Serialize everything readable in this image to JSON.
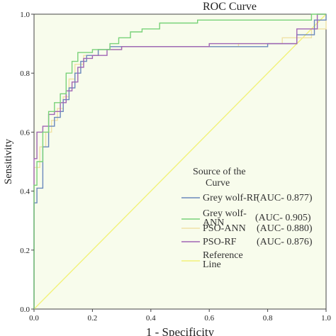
{
  "chart_data": {
    "type": "line",
    "title": "ROC Curve",
    "xlabel": "1 - Specificity",
    "ylabel": "Sensitivity",
    "xlim": [
      0.0,
      1.0
    ],
    "ylim": [
      0.0,
      1.0
    ],
    "x_ticks": [
      "0.0",
      "0.2",
      "0.4",
      "0.6",
      "0.8",
      "1.0"
    ],
    "y_ticks": [
      "0.0",
      "0.2",
      "0.4",
      "0.6",
      "0.8",
      "1.0"
    ],
    "grid": false,
    "background": "#f8fcec",
    "legend": {
      "title": [
        "Source of the",
        "Curve"
      ],
      "placement": "bottom-right",
      "entries": [
        {
          "lines": [
            "Grey wolf-RF"
          ],
          "auc": "(AUC- 0.877)",
          "color": "#6a88bc"
        },
        {
          "lines": [
            "Grey wolf-",
            "ANN"
          ],
          "auc": "(AUC- 0.905)",
          "color": "#79d279"
        },
        {
          "lines": [
            "PSO-ANN"
          ],
          "auc": "(AUC- 0.880)",
          "color": "#f0e2a6"
        },
        {
          "lines": [
            "PSO-RF"
          ],
          "auc": "(AUC- 0.876)",
          "color": "#a064b4"
        },
        {
          "lines": [
            "Reference",
            "Line"
          ],
          "auc": "",
          "color": "#f2f27a"
        }
      ]
    },
    "series": [
      {
        "name": "Grey wolf-RF",
        "color": "#6a88bc",
        "points": [
          [
            0,
            0
          ],
          [
            0,
            0.14
          ],
          [
            0,
            0.36
          ],
          [
            0.01,
            0.36
          ],
          [
            0.01,
            0.41
          ],
          [
            0.03,
            0.41
          ],
          [
            0.03,
            0.55
          ],
          [
            0.05,
            0.55
          ],
          [
            0.05,
            0.62
          ],
          [
            0.07,
            0.62
          ],
          [
            0.07,
            0.65
          ],
          [
            0.09,
            0.65
          ],
          [
            0.09,
            0.67
          ],
          [
            0.1,
            0.67
          ],
          [
            0.1,
            0.71
          ],
          [
            0.12,
            0.71
          ],
          [
            0.12,
            0.75
          ],
          [
            0.14,
            0.75
          ],
          [
            0.14,
            0.8
          ],
          [
            0.16,
            0.8
          ],
          [
            0.16,
            0.84
          ],
          [
            0.18,
            0.84
          ],
          [
            0.18,
            0.86
          ],
          [
            0.22,
            0.86
          ],
          [
            0.22,
            0.88
          ],
          [
            0.26,
            0.88
          ],
          [
            0.26,
            0.89
          ],
          [
            0.8,
            0.89
          ],
          [
            0.8,
            0.9
          ],
          [
            0.9,
            0.9
          ],
          [
            0.9,
            0.93
          ],
          [
            0.96,
            0.93
          ],
          [
            0.96,
            0.98
          ],
          [
            1,
            0.98
          ],
          [
            1,
            1
          ]
        ]
      },
      {
        "name": "Grey wolf-ANN",
        "color": "#79d279",
        "points": [
          [
            0,
            0
          ],
          [
            0,
            0.42
          ],
          [
            0.01,
            0.42
          ],
          [
            0.01,
            0.5
          ],
          [
            0.03,
            0.5
          ],
          [
            0.03,
            0.6
          ],
          [
            0.05,
            0.6
          ],
          [
            0.05,
            0.67
          ],
          [
            0.07,
            0.67
          ],
          [
            0.07,
            0.7
          ],
          [
            0.09,
            0.7
          ],
          [
            0.09,
            0.73
          ],
          [
            0.11,
            0.73
          ],
          [
            0.11,
            0.8
          ],
          [
            0.13,
            0.8
          ],
          [
            0.13,
            0.84
          ],
          [
            0.15,
            0.84
          ],
          [
            0.15,
            0.87
          ],
          [
            0.2,
            0.87
          ],
          [
            0.2,
            0.88
          ],
          [
            0.26,
            0.88
          ],
          [
            0.26,
            0.9
          ],
          [
            0.29,
            0.9
          ],
          [
            0.29,
            0.92
          ],
          [
            0.33,
            0.92
          ],
          [
            0.33,
            0.94
          ],
          [
            0.37,
            0.94
          ],
          [
            0.37,
            0.95
          ],
          [
            0.43,
            0.95
          ],
          [
            0.43,
            0.97
          ],
          [
            0.56,
            0.97
          ],
          [
            0.56,
            0.98
          ],
          [
            0.95,
            0.98
          ],
          [
            0.95,
            1
          ],
          [
            1,
            1
          ]
        ]
      },
      {
        "name": "PSO-ANN",
        "color": "#f0e2a6",
        "points": [
          [
            0,
            0
          ],
          [
            0,
            0.48
          ],
          [
            0.02,
            0.48
          ],
          [
            0.02,
            0.55
          ],
          [
            0.04,
            0.55
          ],
          [
            0.04,
            0.6
          ],
          [
            0.06,
            0.6
          ],
          [
            0.06,
            0.64
          ],
          [
            0.08,
            0.64
          ],
          [
            0.08,
            0.68
          ],
          [
            0.1,
            0.68
          ],
          [
            0.1,
            0.72
          ],
          [
            0.12,
            0.72
          ],
          [
            0.12,
            0.78
          ],
          [
            0.14,
            0.78
          ],
          [
            0.14,
            0.83
          ],
          [
            0.17,
            0.83
          ],
          [
            0.17,
            0.86
          ],
          [
            0.22,
            0.86
          ],
          [
            0.22,
            0.88
          ],
          [
            0.3,
            0.88
          ],
          [
            0.3,
            0.89
          ],
          [
            0.7,
            0.89
          ],
          [
            0.7,
            0.9
          ],
          [
            0.85,
            0.9
          ],
          [
            0.85,
            0.92
          ],
          [
            0.95,
            0.92
          ],
          [
            0.95,
            0.95
          ],
          [
            1,
            0.95
          ],
          [
            1,
            1
          ]
        ]
      },
      {
        "name": "PSO-RF",
        "color": "#a064b4",
        "points": [
          [
            0,
            0
          ],
          [
            0,
            0.51
          ],
          [
            0.01,
            0.51
          ],
          [
            0.01,
            0.6
          ],
          [
            0.03,
            0.6
          ],
          [
            0.03,
            0.62
          ],
          [
            0.05,
            0.62
          ],
          [
            0.05,
            0.66
          ],
          [
            0.07,
            0.66
          ],
          [
            0.07,
            0.67
          ],
          [
            0.09,
            0.67
          ],
          [
            0.09,
            0.7
          ],
          [
            0.11,
            0.7
          ],
          [
            0.11,
            0.74
          ],
          [
            0.13,
            0.74
          ],
          [
            0.13,
            0.77
          ],
          [
            0.15,
            0.77
          ],
          [
            0.15,
            0.82
          ],
          [
            0.17,
            0.82
          ],
          [
            0.17,
            0.85
          ],
          [
            0.2,
            0.85
          ],
          [
            0.2,
            0.86
          ],
          [
            0.25,
            0.86
          ],
          [
            0.25,
            0.88
          ],
          [
            0.3,
            0.88
          ],
          [
            0.3,
            0.89
          ],
          [
            0.6,
            0.89
          ],
          [
            0.6,
            0.9
          ],
          [
            0.9,
            0.9
          ],
          [
            0.9,
            0.95
          ],
          [
            0.97,
            0.95
          ],
          [
            0.97,
            1
          ],
          [
            1,
            1
          ]
        ]
      },
      {
        "name": "Reference Line",
        "color": "#f2f27a",
        "points": [
          [
            0,
            0
          ],
          [
            1,
            1
          ]
        ]
      }
    ]
  }
}
